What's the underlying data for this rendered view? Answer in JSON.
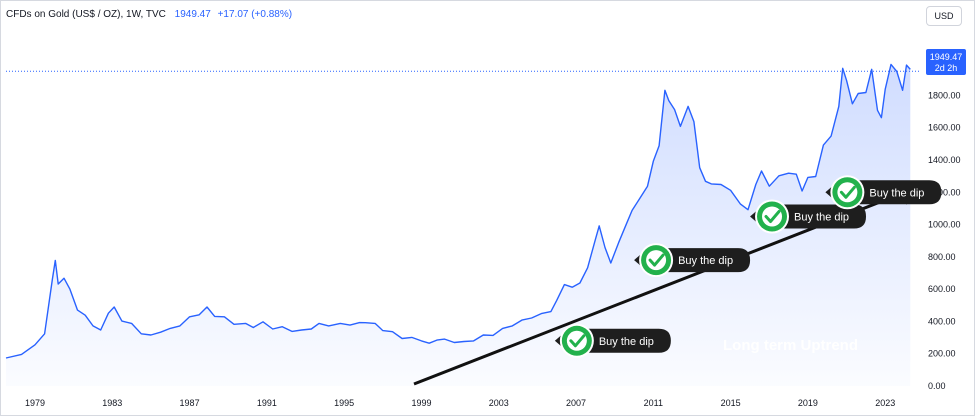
{
  "header": {
    "symbol": "CFDs on Gold (US$ / OZ), 1W, TVC",
    "last_price": "1949.47",
    "change": "+17.07 (+0.88%)"
  },
  "currency_button": "USD",
  "price_badge": {
    "price": "1949.47",
    "countdown": "2d 2h"
  },
  "colors": {
    "line": "#2962ff",
    "badge": "#2962ff",
    "callout": "#1e1e1e",
    "check": "#22b14c"
  },
  "chart_data": {
    "type": "area",
    "title": "",
    "xlabel": "",
    "ylabel": "",
    "xlim": [
      1977.5,
      2024.8
    ],
    "ylim": [
      0,
      2100
    ],
    "x_ticks": [
      "1979",
      "1983",
      "1987",
      "1991",
      "1995",
      "1999",
      "2003",
      "2007",
      "2011",
      "2015",
      "2019",
      "2023"
    ],
    "y_ticks": [
      "0.00",
      "200.00",
      "400.00",
      "600.00",
      "800.00",
      "1000.00",
      "1200.00",
      "1400.00",
      "1600.00",
      "1800.00",
      "2000.00"
    ],
    "last_value_line": 1949.47,
    "series": [
      {
        "x": [
          1977.5,
          1978.3,
          1979.0,
          1979.5,
          1979.9,
          1980.05,
          1980.2,
          1980.5,
          1980.8,
          1981.2,
          1981.6,
          1982.0,
          1982.4,
          1982.8,
          1983.1,
          1983.5,
          1984.0,
          1984.5,
          1985.0,
          1985.5,
          1986.0,
          1986.5,
          1987.0,
          1987.5,
          1987.9,
          1988.3,
          1988.8,
          1989.3,
          1989.9,
          1990.3,
          1990.8,
          1991.3,
          1991.8,
          1992.3,
          1992.8,
          1993.3,
          1993.7,
          1994.2,
          1994.8,
          1995.3,
          1995.8,
          1996.1,
          1996.6,
          1997.0,
          1997.5,
          1998.0,
          1998.5,
          1999.0,
          1999.4,
          1999.8,
          2000.2,
          2000.7,
          2001.2,
          2001.7,
          2002.2,
          2002.7,
          2003.2,
          2003.7,
          2004.2,
          2004.7,
          2005.2,
          2005.7,
          2006.0,
          2006.4,
          2006.8,
          2007.2,
          2007.6,
          2008.0,
          2008.2,
          2008.5,
          2008.8,
          2009.2,
          2009.6,
          2009.9,
          2010.3,
          2010.7,
          2011.0,
          2011.3,
          2011.6,
          2011.8,
          2012.1,
          2012.4,
          2012.8,
          2013.1,
          2013.4,
          2013.7,
          2014.0,
          2014.5,
          2015.0,
          2015.5,
          2015.9,
          2016.3,
          2016.6,
          2017.0,
          2017.5,
          2018.0,
          2018.4,
          2018.7,
          2019.0,
          2019.4,
          2019.8,
          2020.2,
          2020.6,
          2020.8,
          2021.0,
          2021.3,
          2021.6,
          2022.0,
          2022.3,
          2022.6,
          2022.8,
          2023.0,
          2023.3,
          2023.6,
          2023.9,
          2024.1,
          2024.3
        ],
        "y": [
          170,
          200,
          250,
          330,
          650,
          790,
          620,
          680,
          590,
          480,
          430,
          380,
          340,
          460,
          480,
          410,
          380,
          330,
          310,
          340,
          350,
          380,
          420,
          450,
          480,
          440,
          420,
          390,
          380,
          370,
          390,
          360,
          360,
          345,
          340,
          360,
          380,
          380,
          380,
          385,
          385,
          400,
          380,
          350,
          330,
          300,
          295,
          285,
          260,
          290,
          285,
          275,
          270,
          285,
          310,
          320,
          350,
          380,
          400,
          430,
          440,
          470,
          520,
          640,
          600,
          650,
          720,
          920,
          980,
          870,
          750,
          900,
          990,
          1100,
          1150,
          1250,
          1380,
          1500,
          1820,
          1780,
          1700,
          1620,
          1720,
          1650,
          1340,
          1280,
          1240,
          1260,
          1200,
          1140,
          1080,
          1260,
          1320,
          1250,
          1290,
          1330,
          1300,
          1220,
          1280,
          1310,
          1480,
          1560,
          1720,
          1980,
          1880,
          1760,
          1800,
          1830,
          1950,
          1720,
          1650,
          1850,
          1980,
          1960,
          1820,
          2000,
          1949
        ]
      }
    ],
    "annotations": [
      {
        "label": "Buy the dip",
        "x": 2005.8,
        "y": 280
      },
      {
        "label": "Buy the dip",
        "x": 2009.9,
        "y": 780
      },
      {
        "label": "Buy the dip",
        "x": 2015.9,
        "y": 1050
      },
      {
        "label": "Buy the dip",
        "x": 2019.8,
        "y": 1200
      },
      {
        "label": "Long term Uptrend"
      }
    ]
  }
}
